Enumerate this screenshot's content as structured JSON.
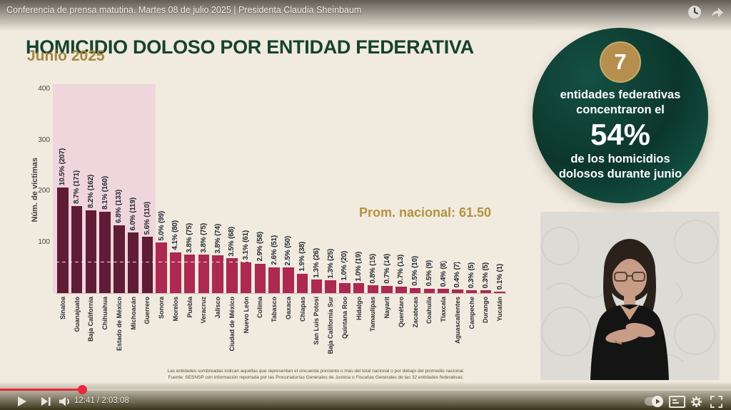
{
  "player": {
    "title": "Conferencia de prensa matutina. Martes 08 de julio 2025 | Presidenta Claudia Sheinbaum",
    "time_display": "12:41 / 2:03:08",
    "current_time": "12:41",
    "duration": "2:03:08",
    "progress_percent": 11.2,
    "accent_color": "#e9273f",
    "icons": {
      "watch_later": "clock-in-circle",
      "share": "bent-arrow",
      "play": "triangle",
      "next": "triangle-bar",
      "volume": "speaker",
      "autoplay": "pill-toggle",
      "subtitles": "cc-box",
      "settings": "gear",
      "fullscreen": "corner-brackets"
    }
  },
  "slide": {
    "title": "HOMICIDIO DOLOSO POR ENTIDAD FEDERATIVA",
    "subtitle": "Junio 2025",
    "avg_label": "Prom. nacional: 61.50",
    "badge": {
      "number": "7",
      "line1": "entidades federativas",
      "line2": "concentraron el",
      "highlight": "54%",
      "line3": "de los homicidios",
      "line4": "dolosos durante junio"
    },
    "footnote1": "Las entidades sombreadas indican aquellas que representan el cincuenta porciento o más del total nacional o por debajo del promedio nacional.",
    "footnote2": "Fuente: SESNSP con información reportada por las Procuradurías Generales de Justicia o Fiscalías Generales de las 32 entidades federativas.",
    "colors": {
      "background": "#f1ebdf",
      "title_green": "#16432f",
      "gold": "#a5883e",
      "bar_dark": "#601c34",
      "bar_light": "#ad2950",
      "highlight_region_pink": "#eed6dc",
      "badge_green": "#0c362c",
      "badge_gold": "#b68f4e"
    }
  },
  "chart_data": {
    "type": "bar",
    "title": "HOMICIDIO DOLOSO POR ENTIDAD FEDERATIVA — Junio 2025",
    "xlabel": "",
    "ylabel": "Núm. de víctimas",
    "y_ticks": [
      100,
      200,
      300,
      400
    ],
    "ylim": [
      0,
      410
    ],
    "grid": false,
    "legend": "none",
    "national_average": 61.5,
    "highlighted_bars": 7,
    "categories": [
      "Sinaloa",
      "Guanajuato",
      "Baja California",
      "Chihuahua",
      "Estado de México",
      "Michoacán",
      "Guerrero",
      "Sonora",
      "Morelos",
      "Puebla",
      "Veracruz",
      "Jalisco",
      "Ciudad de México",
      "Nuevo León",
      "Colima",
      "Tabasco",
      "Oaxaca",
      "Chiapas",
      "San Luis Potosí",
      "Baja California Sur",
      "Quintana Roo",
      "Hidalgo",
      "Tamaulipas",
      "Nayarit",
      "Querétaro",
      "Zacatecas",
      "Coahuila",
      "Tlaxcala",
      "Aguascalientes",
      "Campeche",
      "Durango",
      "Yucatán"
    ],
    "values": [
      207,
      171,
      162,
      160,
      133,
      119,
      110,
      99,
      80,
      75,
      75,
      74,
      68,
      61,
      58,
      51,
      50,
      38,
      26,
      25,
      20,
      19,
      15,
      14,
      13,
      10,
      9,
      8,
      7,
      5,
      5,
      1
    ],
    "bar_labels": [
      "10.5% (207)",
      "8.7% (171)",
      "8.2% (162)",
      "8.1% (160)",
      "6.8% (133)",
      "6.0% (119)",
      "5.6% (110)",
      "5.0% (99)",
      "4.1% (80)",
      "3.8% (75)",
      "3.8% (75)",
      "3.8% (74)",
      "3.5% (68)",
      "3.1% (61)",
      "2.9% (58)",
      "2.6% (51)",
      "2.5% (50)",
      "1.9% (38)",
      "1.3% (26)",
      "1.3% (25)",
      "1.0% (20)",
      "1.0% (19)",
      "0.8% (15)",
      "0.7% (14)",
      "0.7% (13)",
      "0.5% (10)",
      "0.5% (9)",
      "0.4% (8)",
      "0.4% (7)",
      "0.3% (5)",
      "0.3% (5)",
      "0.1% (1)"
    ]
  }
}
